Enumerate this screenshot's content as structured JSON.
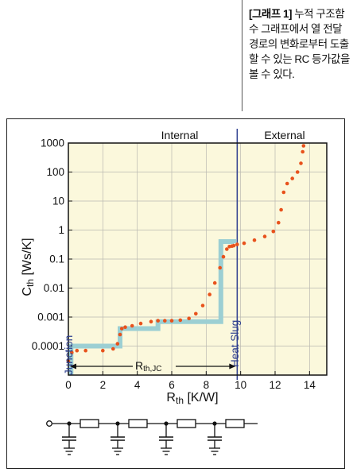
{
  "caption": {
    "tag": "[그래프 1]",
    "text": " 누적 구조함수 그래프에서 열 전달 경로의 변화로부터 도출할 수 있는 RC 등가값을 볼 수 있다."
  },
  "chart_data": {
    "type": "line",
    "scale": {
      "y": "log",
      "x": "linear"
    },
    "xlim": [
      0,
      15
    ],
    "ylim": [
      1e-05,
      1000
    ],
    "x_ticks": [
      "0",
      "2",
      "4",
      "6",
      "8",
      "10",
      "12",
      "14"
    ],
    "y_ticks": [
      "1000",
      "100",
      "10",
      "1",
      "0.1",
      "0.01",
      "0.001",
      "0.0001"
    ],
    "ylabel_main": "C",
    "ylabel_sub": "th",
    "ylabel_unit": " [Ws/K]",
    "xlabel_main": "R",
    "xlabel_sub": "th",
    "xlabel_unit": " [K/W]",
    "region_labels": {
      "internal": "Internal",
      "external": "External"
    },
    "annotations": {
      "junction": "Junction",
      "heat_slug": "Heat Slug",
      "rth_main": "R",
      "rth_sub": "th,JC"
    },
    "heat_slug_x": 9.8,
    "grid": true,
    "colors": {
      "background": "#fbf8dc",
      "curve": "#e8521c",
      "steps": "#9ccfd3",
      "divider": "#2e3f8f"
    },
    "series": [
      {
        "style": "dotted",
        "x": [
          0.0,
          0.2,
          0.5,
          1.0,
          2.0,
          2.6,
          2.85,
          3.0,
          3.1,
          3.3,
          3.7,
          4.2,
          4.8,
          5.2,
          5.6,
          6.0,
          6.5,
          7.0,
          7.4,
          7.8,
          8.2,
          8.5,
          8.8,
          9.0,
          9.2,
          9.35,
          9.5,
          9.6,
          9.8,
          10.2,
          10.8,
          11.4,
          11.9,
          12.2,
          12.35,
          12.5,
          12.7,
          13.0,
          13.3,
          13.5,
          13.6,
          13.65
        ],
        "y": [
          3e-05,
          6e-05,
          7e-05,
          7e-05,
          7e-05,
          8e-05,
          0.00012,
          0.00025,
          0.0004,
          0.00045,
          0.0005,
          0.0006,
          0.0007,
          0.00075,
          0.00075,
          0.00075,
          0.00078,
          0.0009,
          0.0013,
          0.0025,
          0.006,
          0.015,
          0.05,
          0.12,
          0.22,
          0.27,
          0.28,
          0.29,
          0.32,
          0.35,
          0.45,
          0.6,
          0.9,
          1.8,
          5,
          20,
          40,
          60,
          100,
          200,
          500,
          800
        ]
      },
      {
        "style": "step",
        "x": [
          0.15,
          0.15,
          3.0,
          3.0,
          5.2,
          5.2,
          8.85,
          8.85,
          9.6,
          9.6
        ],
        "y": [
          1e-05,
          0.0001,
          0.0001,
          0.0004,
          0.0004,
          0.0007,
          0.0007,
          0.4,
          0.4,
          0.35
        ]
      }
    ]
  },
  "schematic": {
    "ladder_sections": 4
  }
}
